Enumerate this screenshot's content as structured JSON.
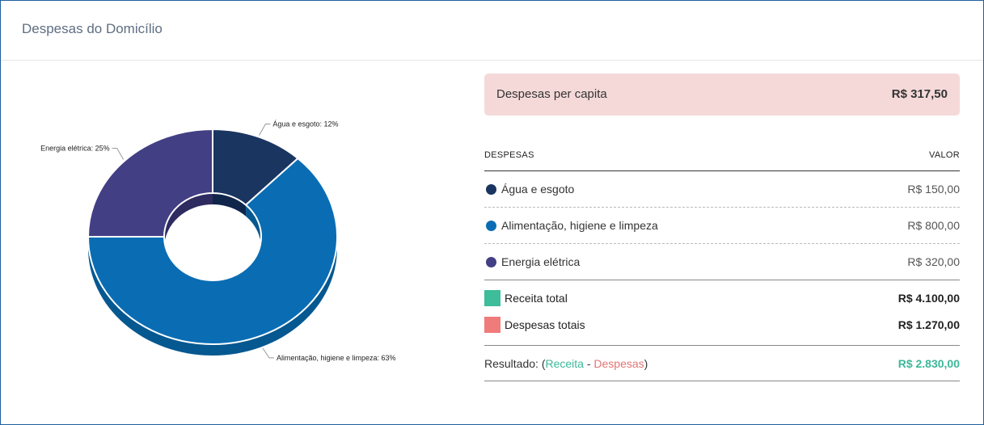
{
  "header": {
    "title": "Despesas do Domicílio"
  },
  "chart_data": {
    "type": "pie",
    "categories": [
      "Água e esgoto",
      "Alimentação, higiene e limpeza",
      "Energia elétrica"
    ],
    "values": [
      12,
      63,
      25
    ],
    "labels": [
      "Água e esgoto: 12%",
      "Alimentação, higiene e limpeza: 63%",
      "Energia elétrica: 25%"
    ],
    "colors": [
      "#1a3560",
      "#0a6db4",
      "#433f84"
    ],
    "side_colors": [
      "#10254a",
      "#055890",
      "#2e2b60"
    ],
    "style": "3d-donut"
  },
  "per_capita": {
    "label": "Despesas per capita",
    "value": "R$ 317,50"
  },
  "table": {
    "head_left": "DESPESAS",
    "head_right": "VALOR",
    "rows": [
      {
        "name": "Água e esgoto",
        "value": "R$ 150,00",
        "color": "#1a3560"
      },
      {
        "name": "Alimentação, higiene e limpeza",
        "value": "R$ 800,00",
        "color": "#0a6db4"
      },
      {
        "name": "Energia elétrica",
        "value": "R$ 320,00",
        "color": "#433f84"
      }
    ]
  },
  "totals": {
    "income": {
      "label": "Receita total",
      "value": "R$ 4.100,00",
      "color": "#3dbd9a"
    },
    "expenses": {
      "label": "Despesas totais",
      "value": "R$ 1.270,00",
      "color": "#ef7b7b"
    }
  },
  "result": {
    "label": "Resultado: (",
    "receita": "Receita",
    "sep": " - ",
    "despesas": "Despesas",
    "close": ")",
    "value": "R$ 2.830,00"
  }
}
